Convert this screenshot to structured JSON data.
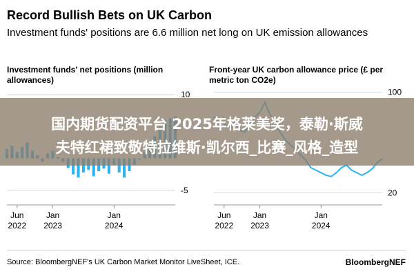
{
  "header": {
    "title": "Record Bullish Bets on UK Carbon",
    "subtitle": "Investment funds' positions are 6.6 million net long on UK emission allowances"
  },
  "banner": {
    "line1": "国内期货配资平台 2025年格莱美奖，泰勒·斯威",
    "line2": "夫特红裙致敬特拉维斯·凯尔西_比赛_风格_造型"
  },
  "footer": {
    "source": "Source: BloombergNEF's UK Carbon Market Monitor LiveSheet, ICE.",
    "brand": "BloombergNEF"
  },
  "chart_data": [
    {
      "type": "bar",
      "title": "Investment funds' net positions (million allowances)",
      "color": "#2bb3f3",
      "y_ticks": [
        10,
        -5
      ],
      "ylim": [
        -6,
        11
      ],
      "x_ticks": [
        {
          "top": "Jun",
          "bottom": "2022",
          "date": "2022-06"
        },
        {
          "top": "Jan",
          "bottom": "2023",
          "date": "2023-01"
        },
        {
          "top": "Jan",
          "bottom": "2024",
          "date": "2024-01"
        }
      ],
      "x_range": [
        "2022-04",
        "2025-01"
      ],
      "x": [
        "2022-04",
        "2022-05",
        "2022-06",
        "2022-07",
        "2022-08",
        "2022-09",
        "2022-10",
        "2022-11",
        "2022-12",
        "2023-01",
        "2023-02",
        "2023-03",
        "2023-04",
        "2023-05",
        "2023-06",
        "2023-07",
        "2023-08",
        "2023-09",
        "2023-10",
        "2023-11",
        "2023-12",
        "2024-01",
        "2024-02",
        "2024-03",
        "2024-04",
        "2024-05",
        "2024-06",
        "2024-07",
        "2024-08",
        "2024-09",
        "2024-10",
        "2024-11",
        "2024-12",
        "2025-01"
      ],
      "values": [
        1.5,
        2.0,
        1.0,
        1.8,
        2.5,
        1.2,
        0.5,
        -0.5,
        0.8,
        1.2,
        0.2,
        -0.5,
        -1.5,
        -2.5,
        -3.0,
        -2.2,
        -1.8,
        -2.8,
        -2.0,
        -1.6,
        -2.4,
        -1.0,
        -2.2,
        -3.0,
        -2.0,
        -1.0,
        -0.2,
        1.0,
        2.2,
        3.5,
        5.0,
        6.0,
        6.3,
        6.6
      ]
    },
    {
      "type": "line",
      "title": "Front-year UK carbon allowance price (£ per metric ton CO2e)",
      "color": "#2bb3f3",
      "y_ticks": [
        100,
        20
      ],
      "ylim": [
        17,
        103
      ],
      "x_ticks": [
        {
          "top": "Jun",
          "bottom": "2022",
          "date": "2022-06"
        },
        {
          "top": "Jan",
          "bottom": "2023",
          "date": "2023-01"
        },
        {
          "top": "Jan",
          "bottom": "2024",
          "date": "2024-01"
        }
      ],
      "x_range": [
        "2022-04",
        "2025-01"
      ],
      "x": [
        "2022-04",
        "2022-05",
        "2022-06",
        "2022-07",
        "2022-08",
        "2022-09",
        "2022-10",
        "2022-11",
        "2022-12",
        "2023-01",
        "2023-02",
        "2023-03",
        "2023-04",
        "2023-05",
        "2023-06",
        "2023-07",
        "2023-08",
        "2023-09",
        "2023-10",
        "2023-11",
        "2023-12",
        "2024-01",
        "2024-02",
        "2024-03",
        "2024-04",
        "2024-05",
        "2024-06",
        "2024-07",
        "2024-08",
        "2024-09",
        "2024-10",
        "2024-11",
        "2024-12",
        "2025-01"
      ],
      "values": [
        80,
        78,
        75,
        72,
        78,
        70,
        68,
        74,
        80,
        84,
        92,
        82,
        75,
        68,
        62,
        58,
        55,
        50,
        46,
        40,
        38,
        36,
        34,
        33,
        36,
        40,
        42,
        38,
        36,
        34,
        36,
        39,
        44,
        47
      ]
    }
  ]
}
